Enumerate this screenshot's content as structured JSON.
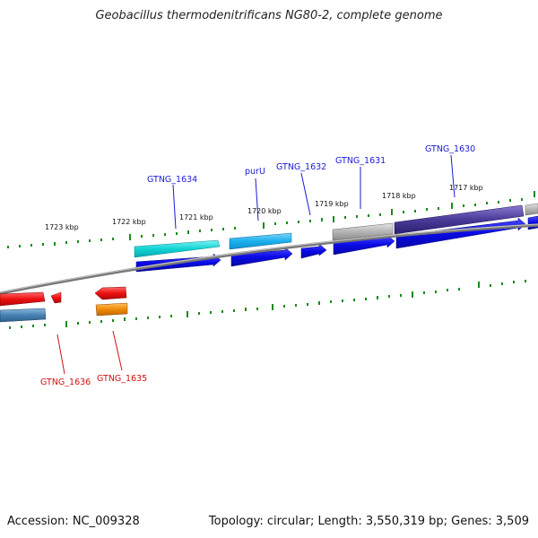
{
  "title": "Geobacillus thermodenitrificans NG80-2, complete genome",
  "footer": {
    "accession": "Accession: NC_009328",
    "summary": "Topology: circular; Length: 3,550,319 bp; Genes: 3,509"
  },
  "scale_labels": {
    "k1723": "1723 kbp",
    "k1722": "1722 kbp",
    "k1721": "1721 kbp",
    "k1720": "1720 kbp",
    "k1719": "1719 kbp",
    "k1718": "1718 kbp",
    "k1717": "1717 kbp"
  },
  "gene_labels": {
    "gtng_1634": "GTNG_1634",
    "purU": "purU",
    "gtng_1632": "GTNG_1632",
    "gtng_1631": "GTNG_1631",
    "gtng_1630": "GTNG_1630",
    "gtng_1636": "GTNG_1636",
    "gtng_1635": "GTNG_1635"
  },
  "colors": {
    "forward_cds": "#1010e0",
    "reverse_cds": "#ee1111",
    "backbone": "#888888",
    "ticks": "#1a8a1a",
    "forward_label": "#1a1ad6",
    "reverse_label": "#cc1111"
  }
}
